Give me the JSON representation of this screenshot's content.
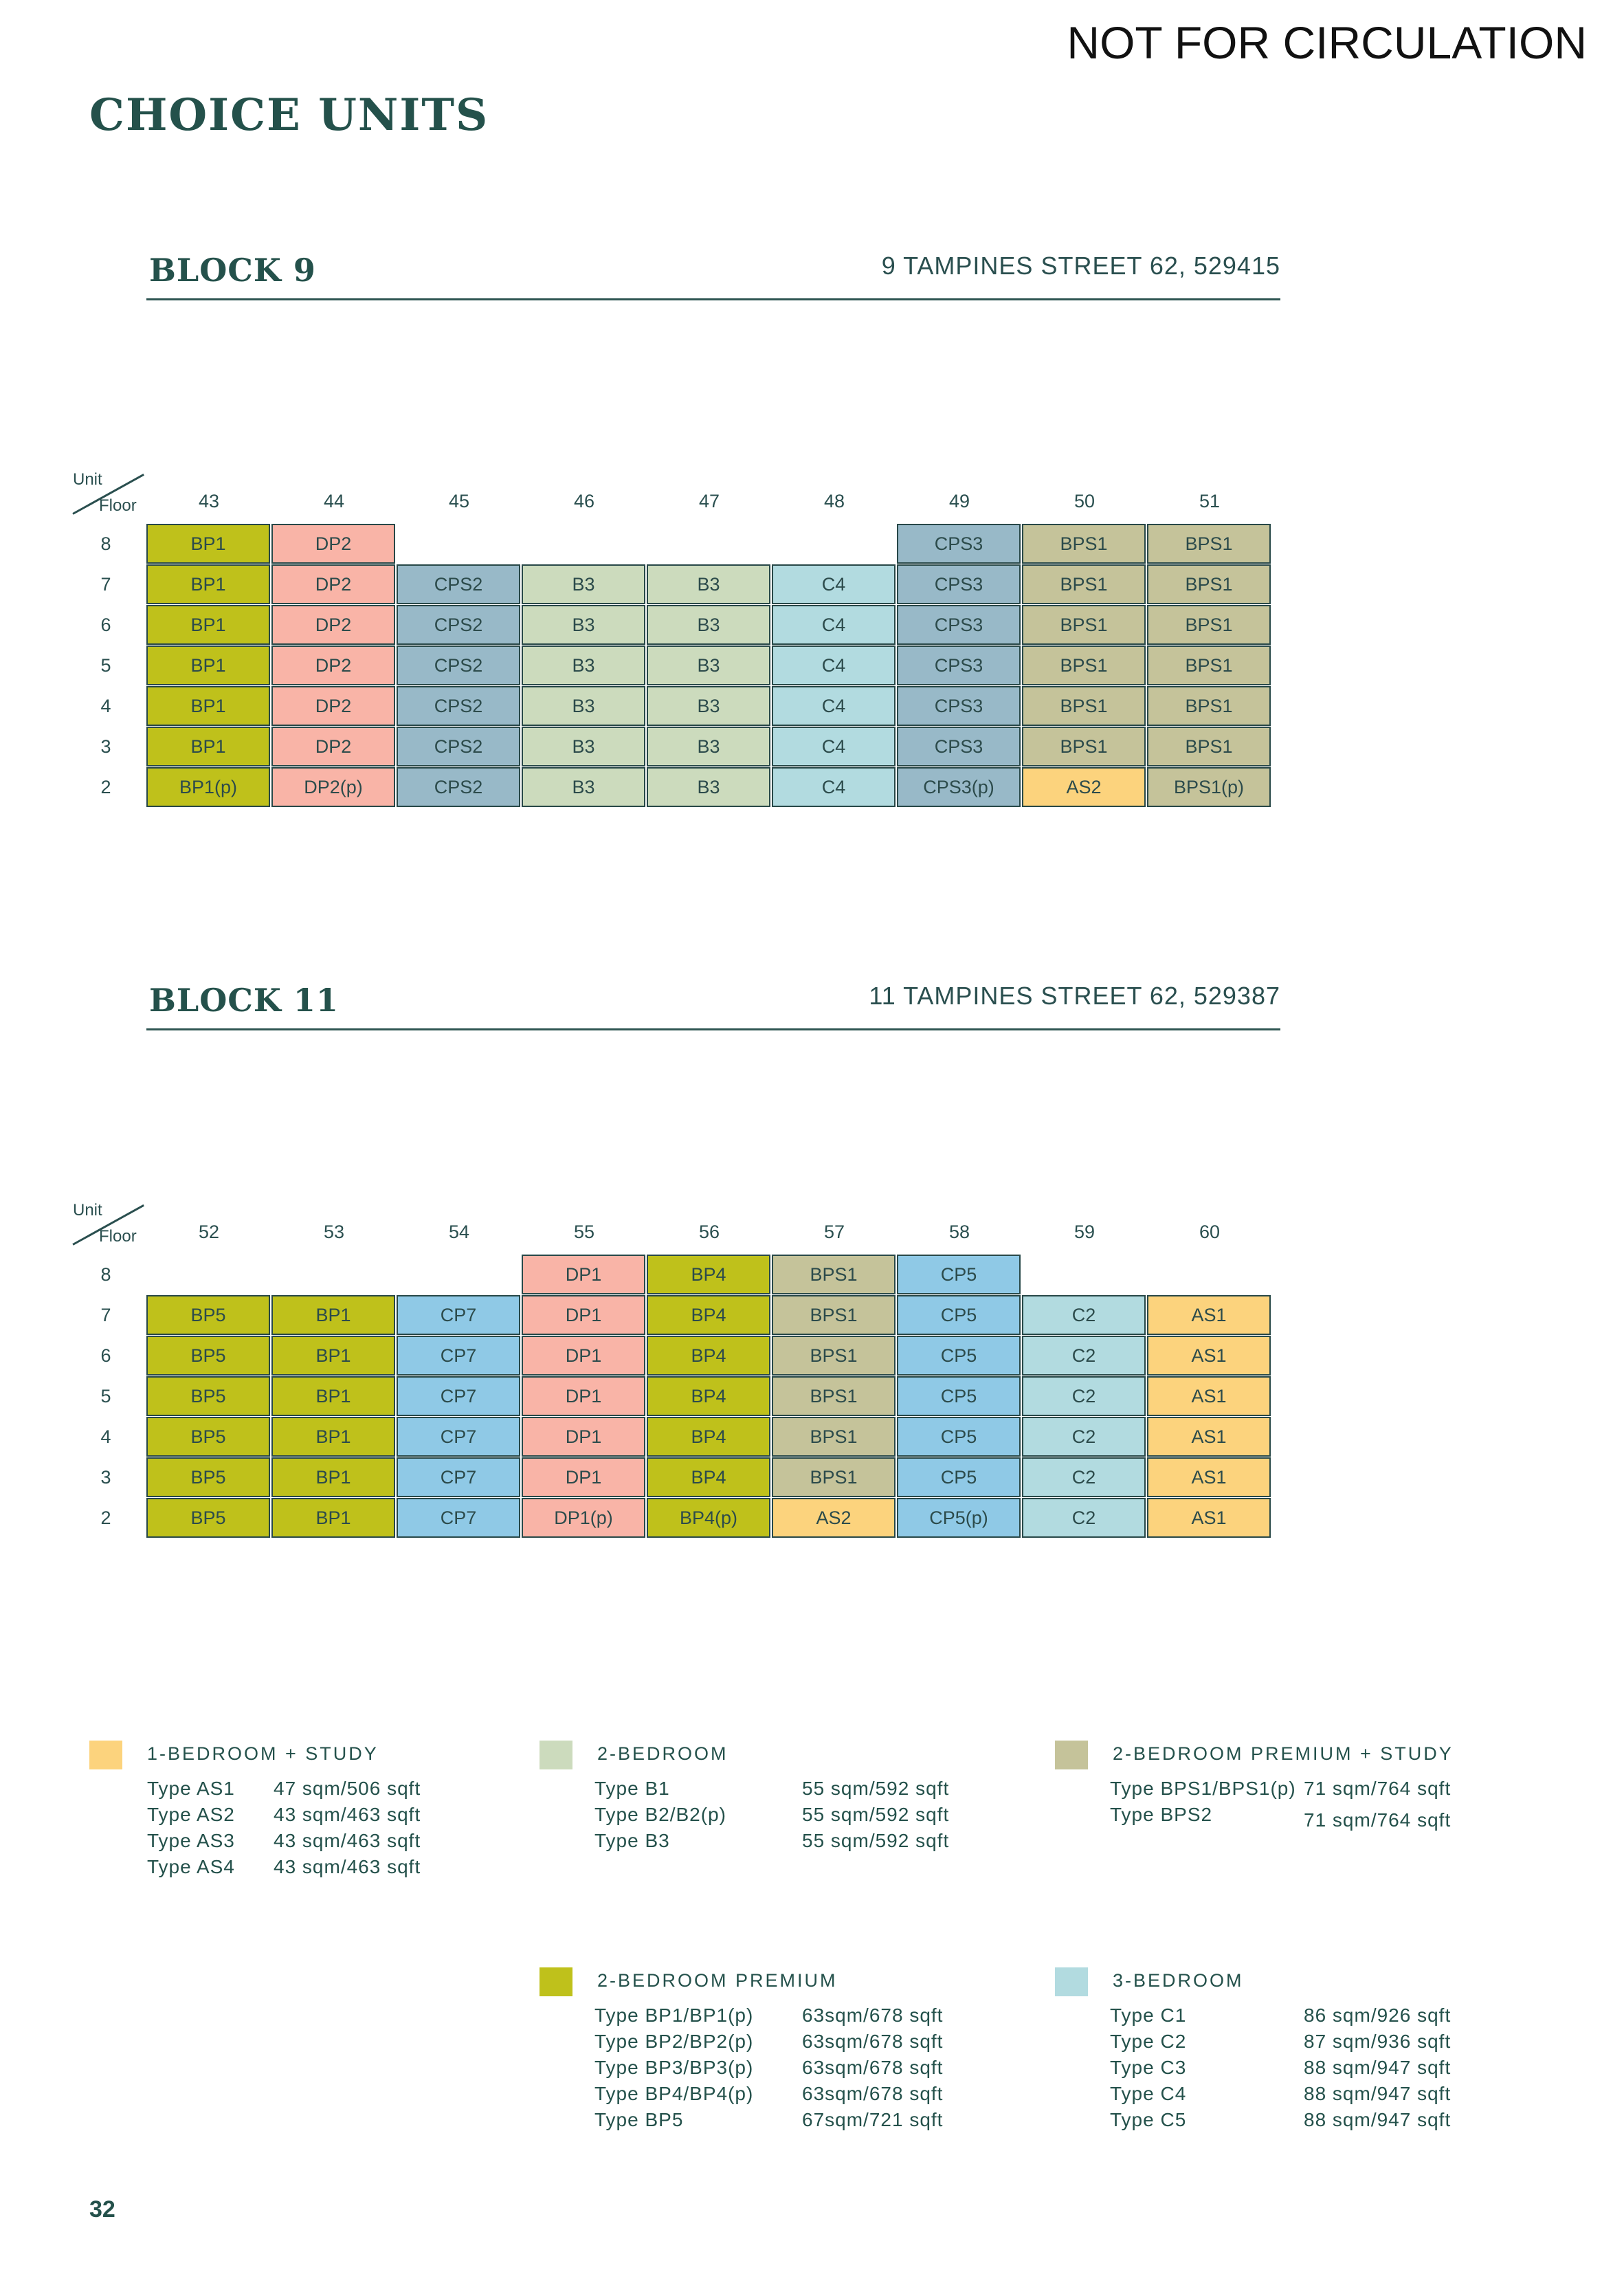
{
  "header": {
    "watermark": "NOT FOR CIRCULATION",
    "title": "CHOICE UNITS",
    "page_number": "32"
  },
  "grid_labels": {
    "unit": "Unit",
    "floor": "Floor"
  },
  "floors": [
    "8",
    "7",
    "6",
    "5",
    "4",
    "3",
    "2"
  ],
  "blocks": [
    {
      "name": "BLOCK 9",
      "address": "9 TAMPINES STREET 62, 529415",
      "units": [
        "43",
        "44",
        "45",
        "46",
        "47",
        "48",
        "49",
        "50",
        "51"
      ],
      "rows": [
        [
          [
            "BP1",
            "BP"
          ],
          [
            "DP2",
            "DP"
          ],
          null,
          null,
          null,
          null,
          [
            "CPS3",
            "CPS"
          ],
          [
            "BPS1",
            "BPS"
          ],
          [
            "BPS1",
            "BPS"
          ]
        ],
        [
          [
            "BP1",
            "BP"
          ],
          [
            "DP2",
            "DP"
          ],
          [
            "CPS2",
            "CPS"
          ],
          [
            "B3",
            "B"
          ],
          [
            "B3",
            "B"
          ],
          [
            "C4",
            "C"
          ],
          [
            "CPS3",
            "CPS"
          ],
          [
            "BPS1",
            "BPS"
          ],
          [
            "BPS1",
            "BPS"
          ]
        ],
        [
          [
            "BP1",
            "BP"
          ],
          [
            "DP2",
            "DP"
          ],
          [
            "CPS2",
            "CPS"
          ],
          [
            "B3",
            "B"
          ],
          [
            "B3",
            "B"
          ],
          [
            "C4",
            "C"
          ],
          [
            "CPS3",
            "CPS"
          ],
          [
            "BPS1",
            "BPS"
          ],
          [
            "BPS1",
            "BPS"
          ]
        ],
        [
          [
            "BP1",
            "BP"
          ],
          [
            "DP2",
            "DP"
          ],
          [
            "CPS2",
            "CPS"
          ],
          [
            "B3",
            "B"
          ],
          [
            "B3",
            "B"
          ],
          [
            "C4",
            "C"
          ],
          [
            "CPS3",
            "CPS"
          ],
          [
            "BPS1",
            "BPS"
          ],
          [
            "BPS1",
            "BPS"
          ]
        ],
        [
          [
            "BP1",
            "BP"
          ],
          [
            "DP2",
            "DP"
          ],
          [
            "CPS2",
            "CPS"
          ],
          [
            "B3",
            "B"
          ],
          [
            "B3",
            "B"
          ],
          [
            "C4",
            "C"
          ],
          [
            "CPS3",
            "CPS"
          ],
          [
            "BPS1",
            "BPS"
          ],
          [
            "BPS1",
            "BPS"
          ]
        ],
        [
          [
            "BP1",
            "BP"
          ],
          [
            "DP2",
            "DP"
          ],
          [
            "CPS2",
            "CPS"
          ],
          [
            "B3",
            "B"
          ],
          [
            "B3",
            "B"
          ],
          [
            "C4",
            "C"
          ],
          [
            "CPS3",
            "CPS"
          ],
          [
            "BPS1",
            "BPS"
          ],
          [
            "BPS1",
            "BPS"
          ]
        ],
        [
          [
            "BP1(p)",
            "BP"
          ],
          [
            "DP2(p)",
            "DP"
          ],
          [
            "CPS2",
            "CPS"
          ],
          [
            "B3",
            "B"
          ],
          [
            "B3",
            "B"
          ],
          [
            "C4",
            "C"
          ],
          [
            "CPS3(p)",
            "CPS"
          ],
          [
            "AS2",
            "AS"
          ],
          [
            "BPS1(p)",
            "BPS"
          ]
        ]
      ]
    },
    {
      "name": "BLOCK 11",
      "address": "11 TAMPINES STREET 62, 529387",
      "units": [
        "52",
        "53",
        "54",
        "55",
        "56",
        "57",
        "58",
        "59",
        "60"
      ],
      "rows": [
        [
          null,
          null,
          null,
          [
            "DP1",
            "DP"
          ],
          [
            "BP4",
            "BP"
          ],
          [
            "BPS1",
            "BPS"
          ],
          [
            "CP5",
            "CP"
          ],
          null,
          null
        ],
        [
          [
            "BP5",
            "BP"
          ],
          [
            "BP1",
            "BP"
          ],
          [
            "CP7",
            "CP"
          ],
          [
            "DP1",
            "DP"
          ],
          [
            "BP4",
            "BP"
          ],
          [
            "BPS1",
            "BPS"
          ],
          [
            "CP5",
            "CP"
          ],
          [
            "C2",
            "C"
          ],
          [
            "AS1",
            "AS"
          ]
        ],
        [
          [
            "BP5",
            "BP"
          ],
          [
            "BP1",
            "BP"
          ],
          [
            "CP7",
            "CP"
          ],
          [
            "DP1",
            "DP"
          ],
          [
            "BP4",
            "BP"
          ],
          [
            "BPS1",
            "BPS"
          ],
          [
            "CP5",
            "CP"
          ],
          [
            "C2",
            "C"
          ],
          [
            "AS1",
            "AS"
          ]
        ],
        [
          [
            "BP5",
            "BP"
          ],
          [
            "BP1",
            "BP"
          ],
          [
            "CP7",
            "CP"
          ],
          [
            "DP1",
            "DP"
          ],
          [
            "BP4",
            "BP"
          ],
          [
            "BPS1",
            "BPS"
          ],
          [
            "CP5",
            "CP"
          ],
          [
            "C2",
            "C"
          ],
          [
            "AS1",
            "AS"
          ]
        ],
        [
          [
            "BP5",
            "BP"
          ],
          [
            "BP1",
            "BP"
          ],
          [
            "CP7",
            "CP"
          ],
          [
            "DP1",
            "DP"
          ],
          [
            "BP4",
            "BP"
          ],
          [
            "BPS1",
            "BPS"
          ],
          [
            "CP5",
            "CP"
          ],
          [
            "C2",
            "C"
          ],
          [
            "AS1",
            "AS"
          ]
        ],
        [
          [
            "BP5",
            "BP"
          ],
          [
            "BP1",
            "BP"
          ],
          [
            "CP7",
            "CP"
          ],
          [
            "DP1",
            "DP"
          ],
          [
            "BP4",
            "BP"
          ],
          [
            "BPS1",
            "BPS"
          ],
          [
            "CP5",
            "CP"
          ],
          [
            "C2",
            "C"
          ],
          [
            "AS1",
            "AS"
          ]
        ],
        [
          [
            "BP5",
            "BP"
          ],
          [
            "BP1",
            "BP"
          ],
          [
            "CP7",
            "CP"
          ],
          [
            "DP1(p)",
            "DP"
          ],
          [
            "BP4(p)",
            "BP"
          ],
          [
            "AS2",
            "AS"
          ],
          [
            "CP5(p)",
            "CP"
          ],
          [
            "C2",
            "C"
          ],
          [
            "AS1",
            "AS"
          ]
        ]
      ]
    }
  ],
  "colors": {
    "AS": "#fcd37d",
    "B": "#ccdbbd",
    "BPS": "#c5c39a",
    "BP": "#bfc11b",
    "C": "#b2dbe0",
    "CPS": "#98b9c8",
    "CP": "#8fc9e6",
    "DP": "#f9b4a7"
  },
  "legend": [
    {
      "title": "1-BEDROOM + STUDY",
      "color": "#fcd37d",
      "rows": [
        [
          "Type AS1",
          "47 sqm/506 sqft"
        ],
        [
          "Type AS2",
          "43 sqm/463 sqft"
        ],
        [
          "Type AS3",
          "43 sqm/463 sqft"
        ],
        [
          "Type AS4",
          "43 sqm/463 sqft"
        ]
      ]
    },
    {
      "title": "2-BEDROOM",
      "color": "#ccdbbd",
      "rows": [
        [
          "Type B1",
          "55 sqm/592 sqft"
        ],
        [
          "Type B2/B2(p)",
          "55 sqm/592 sqft"
        ],
        [
          "Type B3",
          "55 sqm/592 sqft"
        ]
      ]
    },
    {
      "title": "2-BEDROOM PREMIUM + STUDY",
      "color": "#c5c39a",
      "rows": [
        [
          "Type BPS1/BPS1(p)",
          "71 sqm/764 sqft"
        ],
        [
          "Type BPS2",
          "71 sqm/764 sqft"
        ]
      ]
    },
    {
      "title": "2-BEDROOM PREMIUM",
      "color": "#bfc11b",
      "rows": [
        [
          "Type BP1/BP1(p)",
          "63sqm/678 sqft"
        ],
        [
          "Type BP2/BP2(p)",
          "63sqm/678 sqft"
        ],
        [
          "Type BP3/BP3(p)",
          "63sqm/678 sqft"
        ],
        [
          "Type BP4/BP4(p)",
          "63sqm/678 sqft"
        ],
        [
          "Type BP5",
          "67sqm/721 sqft"
        ]
      ]
    },
    {
      "title": "3-BEDROOM",
      "color": "#b2dbe0",
      "rows": [
        [
          "Type C1",
          "86 sqm/926 sqft"
        ],
        [
          "Type C2",
          "87 sqm/936 sqft"
        ],
        [
          "Type C3",
          "88 sqm/947 sqft"
        ],
        [
          "Type C4",
          "88 sqm/947 sqft"
        ],
        [
          "Type C5",
          "88 sqm/947 sqft"
        ]
      ]
    }
  ]
}
